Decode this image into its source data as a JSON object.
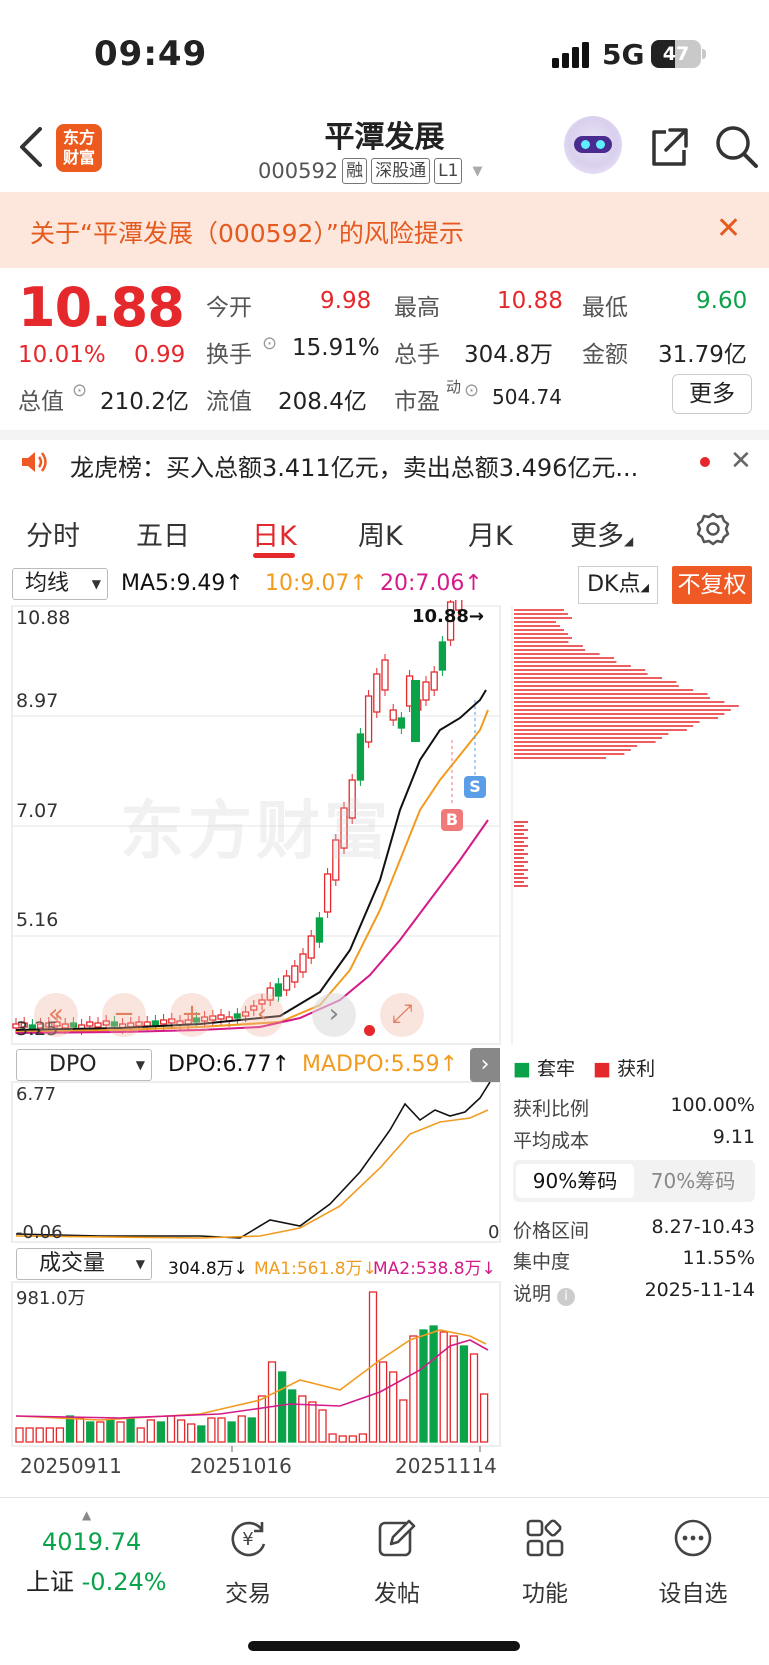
{
  "status_bar": {
    "time": "09:49",
    "network": "5G",
    "battery": "47",
    "battery_level": 0.47
  },
  "header": {
    "title": "平潭发展",
    "code": "000592",
    "tags": [
      "融",
      "深股通",
      "L1"
    ]
  },
  "logo": {
    "line1": "东方",
    "line2": "财富"
  },
  "risk_banner": {
    "text": "关于“平潭发展（000592）”的风险提示"
  },
  "quote": {
    "price": "10.88",
    "change_pct": "10.01%",
    "change": "0.99",
    "open_label": "今开",
    "open": "9.98",
    "high_label": "最高",
    "high": "10.88",
    "low_label": "最低",
    "low": "9.60",
    "turnover_label": "换手",
    "turnover": "15.91%",
    "volume_label": "总手",
    "volume": "304.8万",
    "amount_label": "金额",
    "amount": "31.79亿",
    "mktcap_label": "总值",
    "mktcap": "210.2亿",
    "float_label": "流值",
    "float_cap": "208.4亿",
    "pe_label": "市盈",
    "pe_sup": "动",
    "pe": "504.74",
    "more_button": "更多"
  },
  "dragon_tiger": {
    "text": "龙虎榜：买入总额3.411亿元，卖出总额3.496亿元..."
  },
  "tabs": [
    "分时",
    "五日",
    "日K",
    "周K",
    "月K",
    "更多"
  ],
  "active_tab": "日K",
  "kline": {
    "ma_selector": "均线",
    "ma5": "MA5:9.49↑",
    "ma10": "10:9.07↑",
    "ma20": "20:7.06↑",
    "dk_button": "DK点",
    "fq_button": "不复权",
    "y_labels": [
      "10.88",
      "8.97",
      "7.07",
      "5.16",
      "3.25"
    ],
    "high_marker": "10.88→",
    "buy_marker": "B",
    "sell_marker": "S",
    "watermark": "东方财富"
  },
  "dpo": {
    "selector": "DPO",
    "dpo": "DPO:6.77↑",
    "madpo": "MADPO:5.59↑",
    "y_top": "6.77",
    "y_bottom": "-0.06",
    "y_zero": "0"
  },
  "volume": {
    "selector": "成交量",
    "vol": "304.8万↓",
    "ma1": "MA1:561.8万↓",
    "ma2": "MA2:538.8万↓",
    "y_top": "981.0万",
    "dates": [
      "20250911",
      "20251016",
      "20251114"
    ]
  },
  "chips": {
    "legend_trap": "套牢",
    "legend_profit": "获利",
    "profit_ratio_label": "获利比例",
    "profit_ratio": "100.00%",
    "avg_cost_label": "平均成本",
    "avg_cost": "9.11",
    "seg_90": "90%筹码",
    "seg_70": "70%筹码",
    "range_label": "价格区间",
    "range": "8.27-10.43",
    "concentration_label": "集中度",
    "concentration": "11.55%",
    "note_label": "说明",
    "note_date": "2025-11-14"
  },
  "bottom_bar": {
    "index_value": "4019.74",
    "index_name": "上证",
    "index_change": "-0.24%",
    "items": [
      "交易",
      "发帖",
      "功能",
      "设自选"
    ]
  },
  "colors": {
    "up": "#e5282c",
    "down": "#0aa34a",
    "ma10": "#f19b1f",
    "ma20": "#d41a8a",
    "accent": "#ef5a24"
  }
}
